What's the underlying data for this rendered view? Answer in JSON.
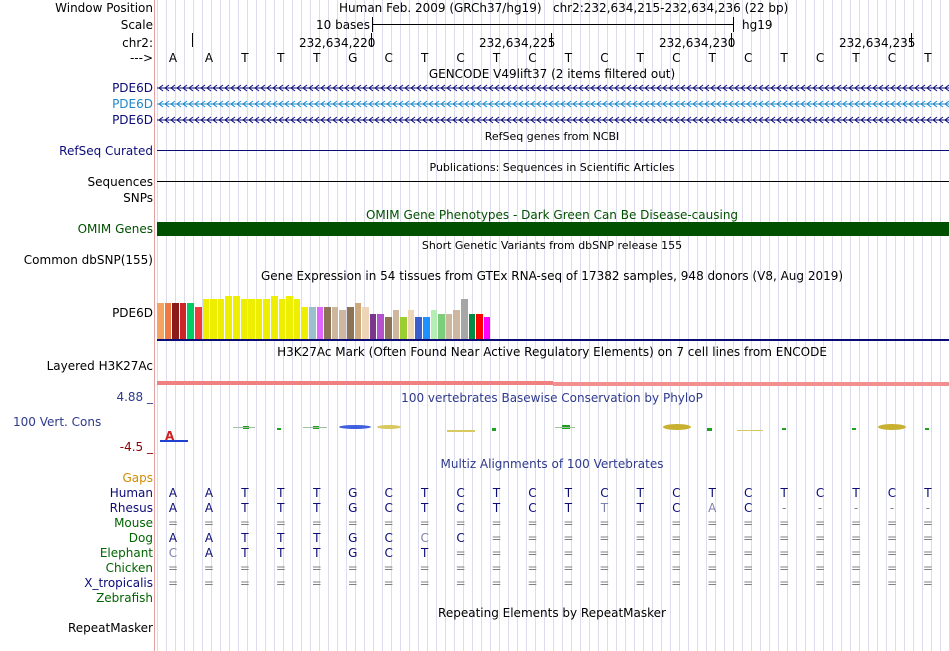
{
  "header": {
    "window_position_label": "Window Position",
    "scale_label": "Scale",
    "chr_label": "chr2:",
    "arrow_label": "--->",
    "assembly": "Human Feb. 2009 (GRCh37/hg19)",
    "position": "chr2:232,634,215-232,634,236 (22 bp)",
    "scale_text": "10 bases",
    "db": "hg19",
    "coords": [
      "232,634,220",
      "232,634,225",
      "232,634,230",
      "232,634,235"
    ]
  },
  "sequence": [
    "A",
    "A",
    "T",
    "T",
    "T",
    "G",
    "C",
    "T",
    "C",
    "T",
    "C",
    "T",
    "C",
    "T",
    "C",
    "T",
    "C",
    "T",
    "C",
    "T",
    "C",
    "T"
  ],
  "tracks": {
    "gencode": {
      "title": "GENCODE V49lift37 (2 items filtered out)",
      "genes": [
        "PDE6D",
        "PDE6D",
        "PDE6D"
      ]
    },
    "refseq": {
      "title": "RefSeq genes from NCBI",
      "label": "RefSeq Curated"
    },
    "publications": {
      "title": "Publications: Sequences in Scientific Articles",
      "label1": "Sequences",
      "label2": "SNPs"
    },
    "omim": {
      "title": "OMIM Gene Phenotypes - Dark Green Can Be Disease-causing",
      "label": "OMIM Genes"
    },
    "dbsnp": {
      "title": "Short Genetic Variants from dbSNP release 155",
      "label": "Common dbSNP(155)"
    },
    "gtex": {
      "title": "Gene Expression in 54 tissues from GTEx RNA-seq of 17382 samples, 948 donors (V8, Aug 2019)",
      "label": "PDE6D"
    },
    "h3k27ac": {
      "title": "H3K27Ac Mark (Often Found Near Active Regulatory Elements) on 7 cell lines from ENCODE",
      "label": "Layered H3K27Ac"
    },
    "phylop": {
      "title": "100 vertebrates Basewise Conservation by PhyloP",
      "label": "100 Vert. Cons",
      "max": "4.88 _",
      "min": "-4.5 _"
    },
    "multiz": {
      "title": "Multiz Alignments of 100 Vertebrates",
      "gaps_label": "Gaps",
      "species": [
        {
          "name": "Human",
          "bases": [
            "A",
            "A",
            "T",
            "T",
            "T",
            "G",
            "C",
            "T",
            "C",
            "T",
            "C",
            "T",
            "C",
            "T",
            "C",
            "T",
            "C",
            "T",
            "C",
            "T",
            "C",
            "T"
          ]
        },
        {
          "name": "Rhesus",
          "bases": [
            "A",
            "A",
            "T",
            "T",
            "T",
            "G",
            "C",
            "T",
            "C",
            "T",
            "C",
            "T",
            "T",
            "T",
            "C",
            "A",
            "C",
            "-",
            "-",
            "-",
            "-",
            "-"
          ]
        },
        {
          "name": "Mouse",
          "bases": [
            "=",
            "=",
            "=",
            "=",
            "=",
            "=",
            "=",
            "=",
            "=",
            "=",
            "=",
            "=",
            "=",
            "=",
            "=",
            "=",
            "=",
            "=",
            "=",
            "=",
            "=",
            "="
          ]
        },
        {
          "name": "Dog",
          "bases": [
            "A",
            "A",
            "T",
            "T",
            "T",
            "G",
            "C",
            "C",
            "C",
            "=",
            "=",
            "=",
            "=",
            "=",
            "=",
            "=",
            "=",
            "=",
            "=",
            "=",
            "=",
            "="
          ]
        },
        {
          "name": "Elephant",
          "bases": [
            "C",
            "A",
            "T",
            "T",
            "T",
            "G",
            "C",
            "T",
            "=",
            "=",
            "=",
            "=",
            "=",
            "=",
            "=",
            "=",
            "=",
            "=",
            "=",
            "=",
            "=",
            "="
          ]
        },
        {
          "name": "Chicken",
          "bases": [
            "=",
            "=",
            "=",
            "=",
            "=",
            "=",
            "=",
            "=",
            "=",
            "=",
            "=",
            "=",
            "=",
            "=",
            "=",
            "=",
            "=",
            "=",
            "=",
            "=",
            "=",
            "="
          ]
        },
        {
          "name": "X_tropicalis",
          "bases": [
            "=",
            "=",
            "=",
            "=",
            "=",
            "=",
            "=",
            "=",
            "=",
            "=",
            "=",
            "=",
            "=",
            "=",
            "=",
            "=",
            "=",
            "=",
            "=",
            "=",
            "=",
            "="
          ]
        },
        {
          "name": "Zebrafish",
          "bases": [
            "",
            "",
            "",
            "",
            "",
            "",
            "",
            "",
            "",
            "",
            "",
            "",
            "",
            "",
            "",
            "",
            "",
            "",
            "",
            "",
            "",
            ""
          ]
        }
      ]
    },
    "repeatmasker": {
      "title": "Repeating Elements by RepeatMasker",
      "label": "RepeatMasker"
    }
  },
  "colors": {
    "gene": "#0c0c78",
    "gene_alt": "#1e87c8",
    "refseq": "#0c0c78",
    "omim": "#005000",
    "omim_title": "#005000",
    "phylop_title": "#2e3a8c",
    "multiz_title": "#2e3a8c",
    "h3k27ac": "#f08080",
    "gaps": "#d28c00",
    "species_primate": "#0c0c78",
    "species_other": "#006400",
    "sep": "#0c0c78"
  },
  "gtex_values": [
    {
      "v": 0.5,
      "c": "#f4a460"
    },
    {
      "v": 0.5,
      "c": "#ee7942"
    },
    {
      "v": 0.5,
      "c": "#8b1a1a"
    },
    {
      "v": 0.5,
      "c": "#cd2626"
    },
    {
      "v": 0.5,
      "c": "#00cd66"
    },
    {
      "v": 0.45,
      "c": "#ee3b3b"
    },
    {
      "v": 0.55,
      "c": "#eeee00"
    },
    {
      "v": 0.55,
      "c": "#eeee00"
    },
    {
      "v": 0.55,
      "c": "#eeee00"
    },
    {
      "v": 0.6,
      "c": "#eeee00"
    },
    {
      "v": 0.6,
      "c": "#eeee00"
    },
    {
      "v": 0.55,
      "c": "#eeee00"
    },
    {
      "v": 0.55,
      "c": "#eeee00"
    },
    {
      "v": 0.55,
      "c": "#eeee00"
    },
    {
      "v": 0.55,
      "c": "#eeee00"
    },
    {
      "v": 0.6,
      "c": "#eeee00"
    },
    {
      "v": 0.55,
      "c": "#eeee00"
    },
    {
      "v": 0.6,
      "c": "#eeee00"
    },
    {
      "v": 0.55,
      "c": "#eeee00"
    },
    {
      "v": 0.45,
      "c": "#eeee00"
    },
    {
      "v": 0.45,
      "c": "#9ac0cd"
    },
    {
      "v": 0.45,
      "c": "#e066ff"
    },
    {
      "v": 0.45,
      "c": "#8b7355"
    },
    {
      "v": 0.45,
      "c": "#cdb79e"
    },
    {
      "v": 0.4,
      "c": "#cdb79e"
    },
    {
      "v": 0.45,
      "c": "#8b7355"
    },
    {
      "v": 0.5,
      "c": "#cdaa7d"
    },
    {
      "v": 0.45,
      "c": "#eed5b7"
    },
    {
      "v": 0.35,
      "c": "#7a378b"
    },
    {
      "v": 0.35,
      "c": "#b452cd"
    },
    {
      "v": 0.3,
      "c": "#8b7355"
    },
    {
      "v": 0.4,
      "c": "#cdb79e"
    },
    {
      "v": 0.3,
      "c": "#9acd32"
    },
    {
      "v": 0.4,
      "c": "#eed5b7"
    },
    {
      "v": 0.3,
      "c": "#3a5fcd"
    },
    {
      "v": 0.3,
      "c": "#1e90ff"
    },
    {
      "v": 0.4,
      "c": "#b4eeb4"
    },
    {
      "v": 0.35,
      "c": "#7ccd7c"
    },
    {
      "v": 0.35,
      "c": "#cdb79e"
    },
    {
      "v": 0.4,
      "c": "#cdb79e"
    },
    {
      "v": 0.55,
      "c": "#a6a6a6"
    },
    {
      "v": 0.35,
      "c": "#008b45"
    },
    {
      "v": 0.35,
      "c": "#ff0000"
    },
    {
      "v": 0.3,
      "c": "#ff00ff"
    }
  ]
}
